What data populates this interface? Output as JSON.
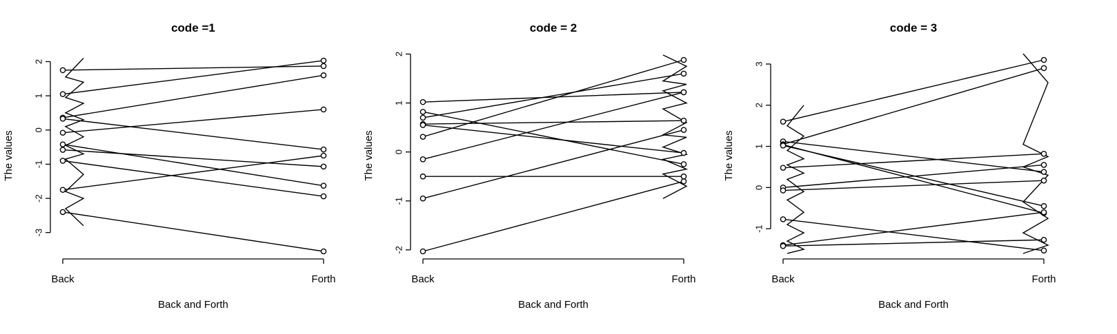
{
  "chart_data": [
    {
      "type": "line",
      "title": "code =1",
      "xlabel": "Back and Forth",
      "ylabel": "The values",
      "categories": [
        "Back",
        "Forth"
      ],
      "yticks": [
        -3,
        -2,
        -1,
        0,
        1,
        2
      ],
      "ylim": [
        -3.55,
        2.05
      ],
      "pairs": [
        [
          1.75,
          1.87
        ],
        [
          1.05,
          2.03
        ],
        [
          0.36,
          1.6
        ],
        [
          0.33,
          -0.57
        ],
        [
          -0.08,
          0.6
        ],
        [
          -0.42,
          -1.63
        ],
        [
          -0.58,
          -1.07
        ],
        [
          -0.9,
          -1.94
        ],
        [
          -1.75,
          -0.75
        ],
        [
          -2.4,
          -3.55
        ]
      ],
      "scribble": [
        [
          2.1,
          0
        ],
        [
          1.55,
          0
        ],
        [
          1.4,
          0
        ],
        [
          0.95,
          0
        ],
        [
          0.78,
          0
        ],
        [
          0.5,
          0
        ],
        [
          0.3,
          0
        ],
        [
          0.1,
          0
        ],
        [
          -0.2,
          0
        ],
        [
          -0.45,
          0
        ],
        [
          -0.7,
          0
        ],
        [
          -0.85,
          0
        ],
        [
          -1.3,
          0
        ],
        [
          -1.8,
          0
        ],
        [
          -2.0,
          0
        ],
        [
          -2.3,
          0
        ],
        [
          -2.8,
          0
        ]
      ]
    },
    {
      "type": "line",
      "title": "code = 2",
      "xlabel": "Back and Forth",
      "ylabel": "The values",
      "categories": [
        "Back",
        "Forth"
      ],
      "yticks": [
        -2,
        -1,
        0,
        1,
        2
      ],
      "ylim": [
        -2.03,
        1.88
      ],
      "pairs": [
        [
          1.02,
          1.22
        ],
        [
          0.82,
          -0.25
        ],
        [
          0.7,
          1.6
        ],
        [
          0.57,
          0.64
        ],
        [
          0.55,
          -0.02
        ],
        [
          0.31,
          1.88
        ],
        [
          -0.15,
          1.22
        ],
        [
          -0.5,
          -0.5
        ],
        [
          -0.95,
          0.45
        ],
        [
          -2.03,
          -0.6
        ]
      ],
      "scribble": [
        [
          1.98,
          1
        ],
        [
          1.75,
          1
        ],
        [
          1.45,
          1
        ],
        [
          1.38,
          1
        ],
        [
          1.25,
          1
        ],
        [
          1.0,
          1
        ],
        [
          0.88,
          1
        ],
        [
          0.6,
          1
        ],
        [
          0.35,
          1
        ],
        [
          0.3,
          1
        ],
        [
          0.1,
          1
        ],
        [
          -0.05,
          1
        ],
        [
          -0.15,
          1
        ],
        [
          -0.35,
          1
        ],
        [
          -0.45,
          1
        ],
        [
          -0.7,
          1
        ],
        [
          -0.95,
          1
        ]
      ]
    },
    {
      "type": "line",
      "title": "code = 3",
      "xlabel": "Back and Forth",
      "ylabel": "The values",
      "categories": [
        "Back",
        "Forth"
      ],
      "yticks": [
        -1,
        0,
        1,
        2,
        3
      ],
      "ylim": [
        -1.55,
        3.1
      ],
      "pairs": [
        [
          1.6,
          3.1
        ],
        [
          1.12,
          0.38
        ],
        [
          1.05,
          2.9
        ],
        [
          1.04,
          -0.62
        ],
        [
          1.02,
          -0.45
        ],
        [
          0.48,
          0.82
        ],
        [
          0.0,
          0.55
        ],
        [
          -0.07,
          0.17
        ],
        [
          -0.77,
          -1.53
        ],
        [
          -1.4,
          -0.6
        ],
        [
          -1.42,
          -1.27
        ]
      ],
      "scribble": [
        [
          2.0,
          0
        ],
        [
          1.5,
          0
        ],
        [
          1.25,
          0
        ],
        [
          0.9,
          0
        ],
        [
          0.7,
          0
        ],
        [
          0.55,
          0
        ],
        [
          0.35,
          0
        ],
        [
          0.2,
          0
        ],
        [
          -0.1,
          0
        ],
        [
          -0.3,
          0
        ],
        [
          -0.6,
          0
        ],
        [
          -0.9,
          0
        ],
        [
          -1.1,
          0
        ],
        [
          -1.3,
          0
        ],
        [
          -1.5,
          0
        ],
        [
          -1.6,
          0
        ],
        [
          3.25,
          1
        ],
        [
          2.55,
          1
        ],
        [
          1.05,
          1
        ],
        [
          0.75,
          1
        ],
        [
          0.5,
          1
        ],
        [
          0.3,
          1
        ],
        [
          -0.35,
          1
        ],
        [
          -0.75,
          1
        ],
        [
          -1.1,
          1
        ],
        [
          -1.4,
          1
        ],
        [
          -1.6,
          1
        ]
      ]
    }
  ]
}
